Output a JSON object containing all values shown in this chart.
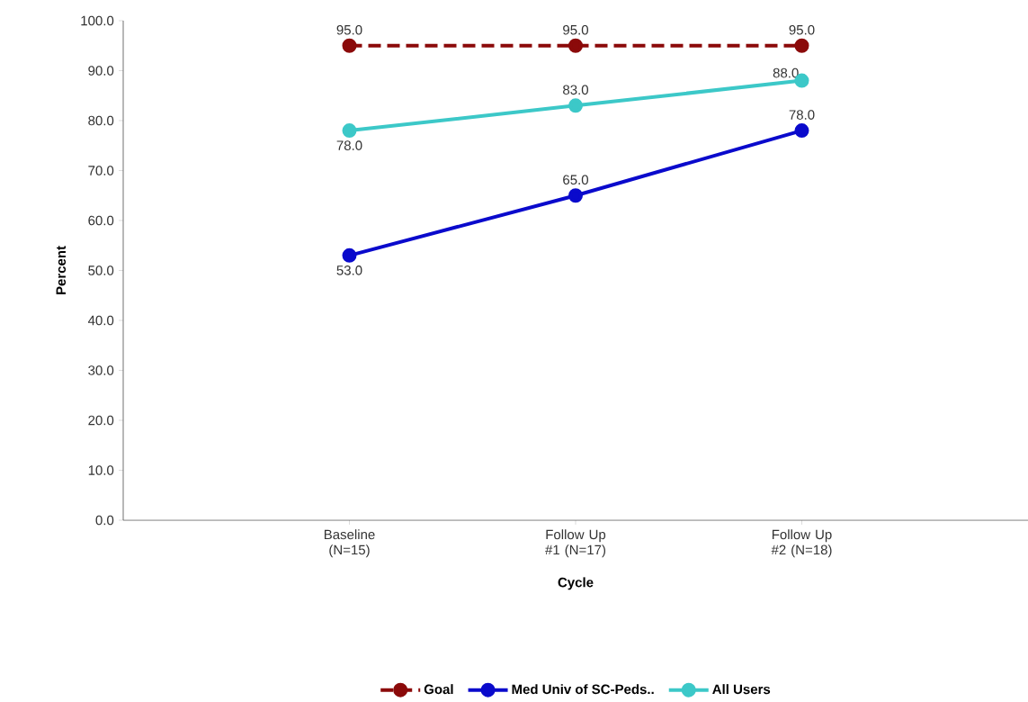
{
  "chart_data": {
    "type": "line",
    "xlabel": "Cycle",
    "ylabel": "Percent",
    "categories": [
      "Baseline (N=15)",
      "Follow Up #1 (N=17)",
      "Follow Up #2 (N=18)"
    ],
    "series": [
      {
        "name": "Goal",
        "color": "#8b0a0a",
        "values": [
          95,
          95,
          95
        ],
        "value_labels": [
          "95.0",
          "95.0",
          "95.0"
        ],
        "line_style": "dashed"
      },
      {
        "name": "Med Univ of  SC-Peds..",
        "color": "#0a0acc",
        "values": [
          53,
          65,
          78
        ],
        "value_labels": [
          "53.0",
          "65.0",
          "78.0"
        ],
        "line_style": "solid"
      },
      {
        "name": "All Users",
        "color": "#3cc8c8",
        "values": [
          78,
          83,
          88
        ],
        "value_labels": [
          "78.0",
          "83.0",
          "88.0"
        ],
        "line_style": "solid"
      }
    ],
    "ylim": [
      0,
      100
    ],
    "yticks": [
      {
        "value": 0,
        "label": "0.0"
      },
      {
        "value": 10,
        "label": "10.0"
      },
      {
        "value": 20,
        "label": "20.0"
      },
      {
        "value": 30,
        "label": "30.0"
      },
      {
        "value": 40,
        "label": "40.0"
      },
      {
        "value": 50,
        "label": "50.0"
      },
      {
        "value": 60,
        "label": "60.0"
      },
      {
        "value": 70,
        "label": "70.0"
      },
      {
        "value": 80,
        "label": "80.0"
      },
      {
        "value": 90,
        "label": "90.0"
      },
      {
        "value": 100,
        "label": "100.0"
      }
    ],
    "marker": "circle",
    "legend": "bottom",
    "grid": false
  }
}
